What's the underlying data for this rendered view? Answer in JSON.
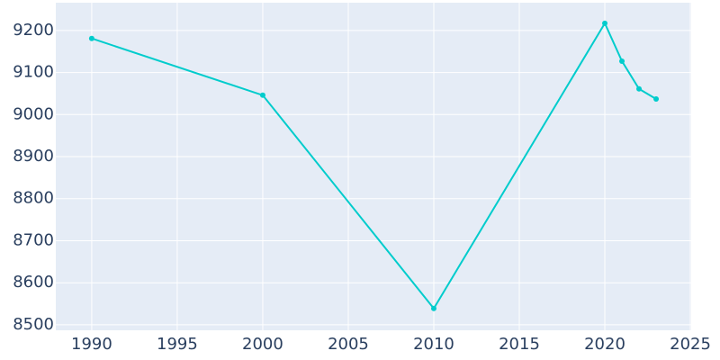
{
  "chart_data": {
    "type": "line",
    "x": [
      1990,
      2000,
      2010,
      2020,
      2021,
      2022,
      2023
    ],
    "series": [
      {
        "color": "#00cccc",
        "values": [
          9181,
          9046,
          8539,
          9217,
          9127,
          9061,
          9037
        ]
      }
    ],
    "xlim": [
      1987.9,
      2025.05
    ],
    "xticks": [
      1990,
      1995,
      2000,
      2005,
      2010,
      2015,
      2020,
      2025
    ],
    "ylim": [
      8487,
      9266
    ],
    "yticks": [
      8500,
      8600,
      8700,
      8800,
      8900,
      9000,
      9100,
      9200
    ],
    "grid": true,
    "background": "#e5ecf6"
  }
}
